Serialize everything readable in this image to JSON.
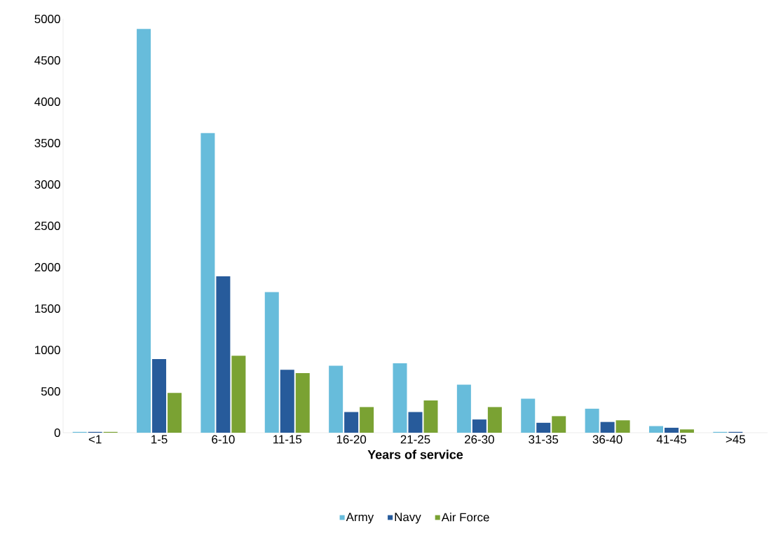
{
  "chart_data": {
    "type": "bar",
    "xlabel": "Years of service",
    "categories": [
      "<1",
      "1-5",
      "6-10",
      "11-15",
      "16-20",
      "21-25",
      "26-30",
      "31-35",
      "36-40",
      "41-45",
      ">45"
    ],
    "series": [
      {
        "name": "Army",
        "color": "#67bcdb",
        "values": [
          10,
          4880,
          3620,
          1700,
          810,
          840,
          580,
          410,
          290,
          80,
          10
        ]
      },
      {
        "name": "Navy",
        "color": "#275b9b",
        "values": [
          10,
          890,
          1890,
          760,
          250,
          250,
          160,
          120,
          130,
          60,
          10
        ]
      },
      {
        "name": "Air Force",
        "color": "#7aa233",
        "values": [
          10,
          480,
          930,
          720,
          310,
          390,
          310,
          200,
          150,
          40,
          0
        ]
      }
    ],
    "ylim": [
      0,
      5000
    ],
    "yticks": [
      0,
      500,
      1000,
      1500,
      2000,
      2500,
      3000,
      3500,
      4000,
      4500,
      5000
    ],
    "grid": false,
    "legend": "bottom"
  }
}
